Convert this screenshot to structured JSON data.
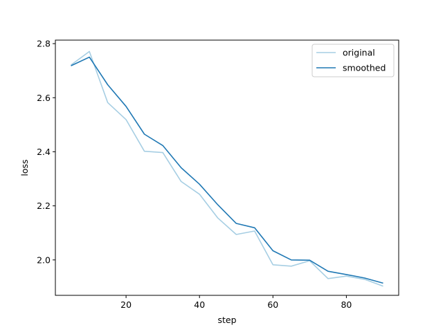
{
  "chart_data": {
    "type": "line",
    "title": "",
    "xlabel": "step",
    "ylabel": "loss",
    "xlim": [
      0.75,
      94.25
    ],
    "ylim": [
      1.869,
      2.813
    ],
    "xticks": [
      20,
      40,
      60,
      80
    ],
    "yticks": [
      2.0,
      2.2,
      2.4,
      2.6,
      2.8
    ],
    "xtick_labels": [
      "20",
      "40",
      "60",
      "80"
    ],
    "ytick_labels": [
      "2.0",
      "2.2",
      "2.4",
      "2.6",
      "2.8"
    ],
    "x": [
      5,
      10,
      15,
      20,
      25,
      30,
      35,
      40,
      45,
      50,
      55,
      60,
      65,
      70,
      75,
      80,
      85,
      90
    ],
    "series": [
      {
        "name": "original",
        "color": "#a6cee3",
        "values": [
          2.721,
          2.771,
          2.582,
          2.519,
          2.402,
          2.397,
          2.29,
          2.243,
          2.155,
          2.094,
          2.107,
          1.982,
          1.977,
          1.997,
          1.931,
          1.94,
          1.928,
          1.903
        ]
      },
      {
        "name": "smoothed",
        "color": "#1f78b4",
        "values": [
          2.718,
          2.75,
          2.648,
          2.568,
          2.465,
          2.423,
          2.341,
          2.28,
          2.204,
          2.135,
          2.119,
          2.034,
          2.0,
          1.999,
          1.958,
          1.946,
          1.933,
          1.914
        ]
      }
    ],
    "legend": {
      "placement": "top-right",
      "entries": [
        "original",
        "smoothed"
      ]
    },
    "grid": false
  }
}
